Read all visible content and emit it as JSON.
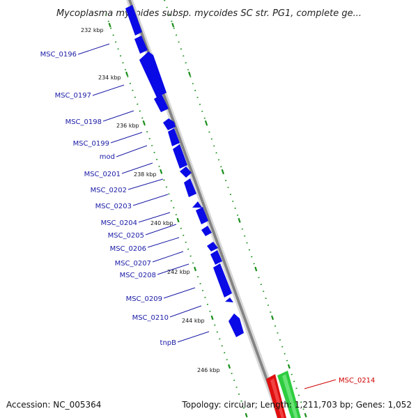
{
  "title": "Mycoplasma mycoides subsp. mycoides SC str. PG1, complete ge...",
  "footer": {
    "accession": "Accession: NC_005364",
    "summary": "Topology: circular; Length: 1,211,703 bp; Genes: 1,052"
  },
  "kbp_labels": [
    "232 kbp",
    "234 kbp",
    "236 kbp",
    "238 kbp",
    "240 kbp",
    "242 kbp",
    "244 kbp",
    "246 kbp"
  ],
  "gene_labels": [
    "MSC_0196",
    "MSC_0197",
    "MSC_0198",
    "MSC_0199",
    "mod",
    "MSC_0201",
    "MSC_0202",
    "MSC_0203",
    "MSC_0204",
    "MSC_0205",
    "MSC_0206",
    "MSC_0207",
    "MSC_0208",
    "MSC_0209",
    "MSC_0210",
    "tnpB"
  ],
  "highlight_gene": "MSC_0214",
  "colors": {
    "gene": "#0a0ae6",
    "gene_highlight_red": "#e01010",
    "gene_highlight_green": "#2ecc40",
    "backbone": "#8c8c8c",
    "tick": "#1a8f1a",
    "label_blue": "#1a1aa6",
    "label_red": "#d00000"
  }
}
